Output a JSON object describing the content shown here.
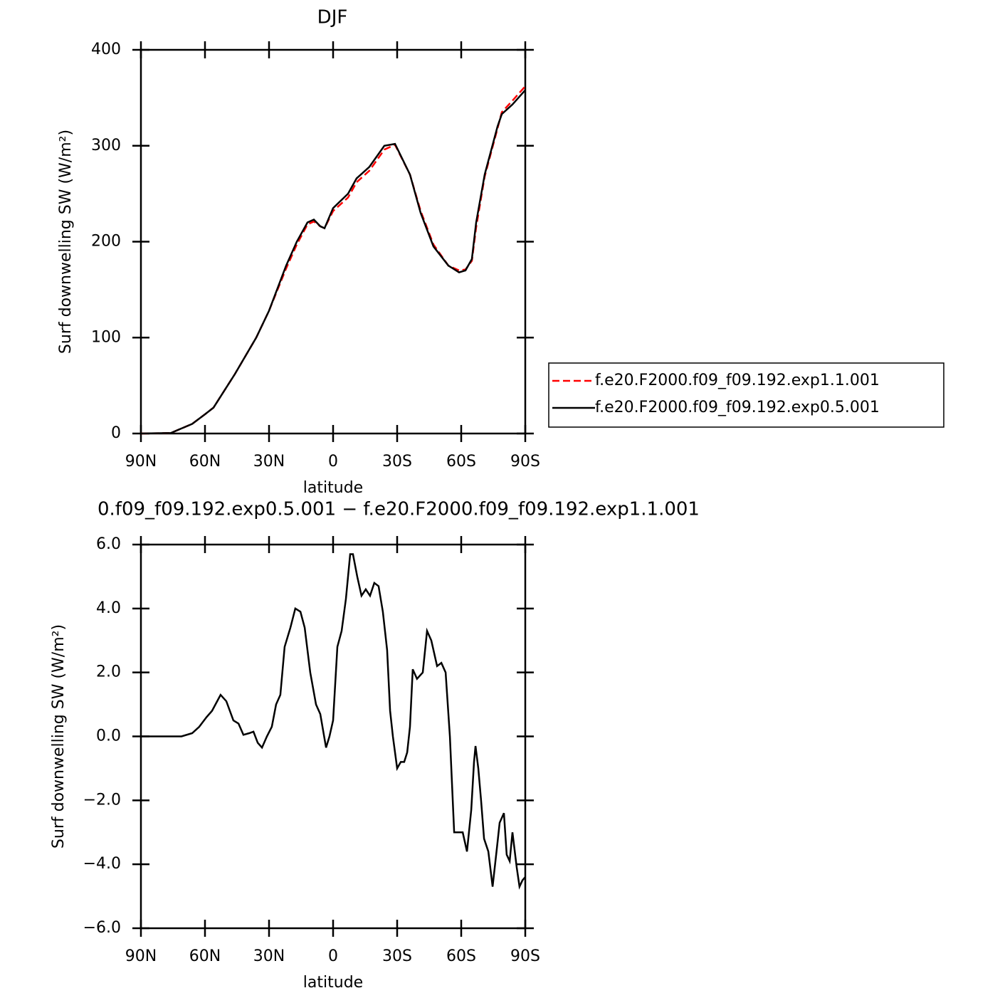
{
  "chart_data": [
    {
      "type": "line",
      "title": "DJF",
      "xlabel": "latitude",
      "ylabel": "Surf downwelling SW (W/m²)",
      "x": [
        90,
        76,
        66,
        60,
        56,
        46,
        36,
        30,
        22,
        17,
        12,
        9,
        6,
        4,
        0,
        -7,
        -11,
        -17,
        -24,
        -29,
        -36,
        -41,
        -47,
        -54,
        -59,
        -62,
        -65,
        -67,
        -71,
        -77,
        -79,
        -84,
        -90
      ],
      "series": [
        {
          "name": "f.e20.F2000.f09_f09.192.exp1.1.001",
          "color": "#ff0000",
          "dashed": true,
          "values": [
            0,
            0.5,
            10,
            20,
            27,
            62,
            100,
            128,
            172,
            197,
            218,
            221,
            216,
            214,
            232,
            246,
            262,
            274,
            296,
            301,
            270,
            232,
            197,
            175,
            170,
            171,
            180,
            215,
            268,
            318,
            335,
            347,
            362
          ]
        },
        {
          "name": "f.e20.F2000.f09_f09.192.exp0.5.001",
          "color": "#000000",
          "dashed": false,
          "values": [
            0,
            0.5,
            10,
            20,
            27,
            62,
            100,
            128,
            175,
            200,
            220,
            223,
            216,
            214,
            235,
            250,
            266,
            278,
            300,
            302,
            270,
            230,
            195,
            175,
            168,
            170,
            182,
            220,
            270,
            320,
            333,
            343,
            358
          ]
        }
      ],
      "xlim": [
        90,
        -90
      ],
      "xticks": [
        {
          "value": 90,
          "label": "90N"
        },
        {
          "value": 60,
          "label": "60N"
        },
        {
          "value": 30,
          "label": "30N"
        },
        0,
        {
          "value": -30,
          "label": "30S"
        },
        {
          "value": -60,
          "label": "60S"
        },
        {
          "value": -90,
          "label": "90S"
        }
      ],
      "ylim": [
        0,
        400
      ],
      "yticks": [
        0,
        100,
        200,
        300,
        400
      ]
    },
    {
      "type": "line",
      "title": "0.f09_f09.192.exp0.5.001 − f.e20.F2000.f09_f09.192.exp1.1.001",
      "xlabel": "latitude",
      "ylabel": "Surf downwelling SW (W/m²)",
      "x": [
        90,
        76,
        71,
        66,
        62.7,
        59.3,
        56.7,
        52.7,
        50,
        46.7,
        44.3,
        42,
        39.3,
        37.3,
        35.3,
        33.3,
        31,
        28.7,
        26.7,
        24.7,
        22.7,
        20,
        17.7,
        15.3,
        13.3,
        10.7,
        8,
        6,
        3.3,
        1.7,
        0,
        -2,
        -4,
        -6,
        -8,
        -9.3,
        -11.3,
        -13.3,
        -15.3,
        -17.3,
        -19.3,
        -21.3,
        -23.3,
        -25.3,
        -26.7,
        -28,
        -30,
        -31.7,
        -33.3,
        -34.7,
        -36,
        -37.3,
        -39.3,
        -42,
        -44,
        -46,
        -48.7,
        -50.7,
        -52.7,
        -54.7,
        -56.7,
        -58.7,
        -60.7,
        -62.7,
        -64.7,
        -66,
        -66.7,
        -68,
        -69.3,
        -70.7,
        -72.7,
        -74.7,
        -76.7,
        -78,
        -80,
        -81.3,
        -82.7,
        -84,
        -86,
        -87.3,
        -88.7,
        -90
      ],
      "values": [
        0,
        0,
        0,
        0.1,
        0.3,
        0.6,
        0.8,
        1.3,
        1.1,
        0.5,
        0.4,
        0.05,
        0.1,
        0.15,
        -0.2,
        -0.35,
        0,
        0.3,
        1.0,
        1.3,
        2.8,
        3.4,
        4.0,
        3.9,
        3.4,
        2.0,
        1.0,
        0.7,
        -0.35,
        0,
        0.5,
        2.8,
        3.3,
        4.3,
        5.7,
        5.7,
        5.0,
        4.4,
        4.6,
        4.4,
        4.8,
        4.7,
        3.9,
        2.7,
        0.8,
        0,
        -1.0,
        -0.8,
        -0.8,
        -0.5,
        0.3,
        2.1,
        1.8,
        2.0,
        3.3,
        3.0,
        2.2,
        2.3,
        2.0,
        0,
        -3.0,
        -3.0,
        -3.0,
        -3.6,
        -2.3,
        -0.8,
        -0.3,
        -1.0,
        -2.0,
        -3.2,
        -3.6,
        -4.7,
        -3.5,
        -2.7,
        -2.4,
        -3.7,
        -3.9,
        -3.0,
        -4.1,
        -4.7,
        -4.5,
        -4.4
      ],
      "color": "#000000",
      "xlim": [
        90,
        -90
      ],
      "xticks": [
        {
          "value": 90,
          "label": "90N"
        },
        {
          "value": 60,
          "label": "60N"
        },
        {
          "value": 30,
          "label": "30N"
        },
        0,
        {
          "value": -30,
          "label": "30S"
        },
        {
          "value": -60,
          "label": "60S"
        },
        {
          "value": -90,
          "label": "90S"
        }
      ],
      "ylim": [
        -6,
        6
      ],
      "yticks": [
        {
          "value": 6,
          "label": "6.0"
        },
        {
          "value": 4,
          "label": "4.0"
        },
        {
          "value": 2,
          "label": "2.0"
        },
        {
          "value": 0,
          "label": "0.0"
        },
        {
          "value": -2,
          "label": "−2.0"
        },
        {
          "value": -4,
          "label": "−4.0"
        },
        {
          "value": -6,
          "label": "−6.0"
        }
      ]
    }
  ]
}
